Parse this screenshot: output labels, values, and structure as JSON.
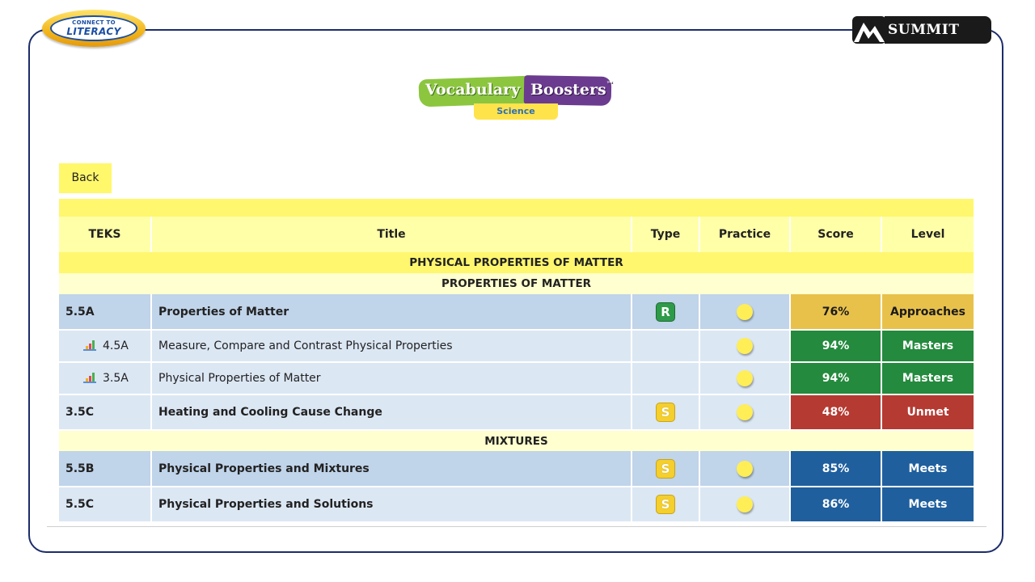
{
  "logos": {
    "connect_line1": "CONNECT TO",
    "connect_line2": "LITERACY",
    "summit": "SUMMIT K12",
    "vocab_word1": "Vocabulary",
    "vocab_word2": "Boosters",
    "vocab_tm": "™",
    "vocab_sub": "Science"
  },
  "back_label": "Back",
  "table": {
    "headers": [
      "TEKS",
      "Title",
      "Type",
      "Practice",
      "Score",
      "Level"
    ],
    "sections": [
      {
        "title": "PHYSICAL PROPERTIES OF MATTER"
      },
      {
        "subtitle": "PROPERTIES OF MATTER"
      },
      {
        "subtitle": "MIXTURES"
      }
    ],
    "rows": [
      {
        "teks": "5.5A",
        "title": "Properties of Matter",
        "type": "R",
        "score": "76%",
        "level": "Approaches"
      },
      {
        "teks": "4.5A",
        "title": "Measure, Compare and Contrast Physical Properties",
        "type": "",
        "score": "94%",
        "level": "Masters"
      },
      {
        "teks": "3.5A",
        "title": "Physical Properties of Matter",
        "type": "",
        "score": "94%",
        "level": "Masters"
      },
      {
        "teks": "3.5C",
        "title": "Heating and Cooling Cause Change",
        "type": "S",
        "score": "48%",
        "level": "Unmet"
      },
      {
        "teks": "5.5B",
        "title": "Physical Properties and Mixtures",
        "type": "S",
        "score": "85%",
        "level": "Meets"
      },
      {
        "teks": "5.5C",
        "title": "Physical Properties and Solutions",
        "type": "S",
        "score": "86%",
        "level": "Meets"
      }
    ]
  },
  "colors": {
    "approaches": "#e8c14b",
    "masters": "#248a3d",
    "unmet": "#b53a32",
    "meets": "#1f5f9e",
    "frame": "#1c2c6b"
  },
  "icons": {
    "sub_row": "bar-chart-icon",
    "practice": "circle-icon",
    "type_r": "r-badge-icon",
    "type_s": "s-badge-icon"
  }
}
